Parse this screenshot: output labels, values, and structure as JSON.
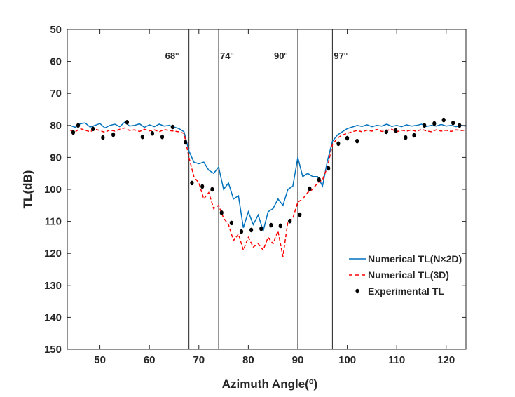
{
  "chart_data": {
    "type": "line",
    "title": "",
    "xlabel": "Azimuth Angle(°)",
    "ylabel": "TL(dB)",
    "xlim": [
      43.4,
      124
    ],
    "ylim": [
      50,
      150
    ],
    "y_reversed": true,
    "xticks": [
      50,
      60,
      70,
      80,
      90,
      100,
      110,
      120
    ],
    "yticks": [
      50,
      60,
      70,
      80,
      90,
      100,
      110,
      120,
      130,
      140,
      150
    ],
    "grid": false,
    "legend_placement": "lower-right",
    "vertical_markers": [
      {
        "x": 68,
        "label": "68°"
      },
      {
        "x": 74,
        "label": "74°"
      },
      {
        "x": 90,
        "label": "90°"
      },
      {
        "x": 97,
        "label": "97°"
      }
    ],
    "x": [
      44,
      45,
      46,
      47,
      48,
      49,
      50,
      51,
      52,
      53,
      54,
      55,
      56,
      57,
      58,
      59,
      60,
      61,
      62,
      63,
      64,
      65,
      66,
      67,
      68,
      69,
      70,
      71,
      72,
      73,
      74,
      75,
      76,
      77,
      78,
      79,
      80,
      81,
      82,
      83,
      84,
      85,
      86,
      87,
      88,
      89,
      90,
      91,
      92,
      93,
      94,
      95,
      96,
      97,
      98,
      99,
      100,
      101,
      102,
      103,
      104,
      105,
      106,
      107,
      108,
      109,
      110,
      111,
      112,
      113,
      114,
      115,
      116,
      117,
      118,
      119,
      120,
      121,
      122,
      123,
      124
    ],
    "series": [
      {
        "name": "Numerical TL(N×2D)",
        "color": "#0072BD",
        "style": "solid",
        "values": [
          80,
          80.6,
          79.5,
          79.2,
          80.5,
          80,
          79.4,
          80.8,
          80,
          79.6,
          80.4,
          79,
          80.2,
          80,
          79.5,
          80.6,
          79.8,
          80.4,
          79.6,
          80.2,
          80,
          80.5,
          81,
          82,
          88,
          91.5,
          92,
          91.5,
          94,
          95,
          93,
          100,
          98,
          103,
          102,
          112,
          107,
          111,
          108,
          113,
          107,
          106,
          103,
          105,
          100,
          99,
          90,
          96,
          95,
          96,
          96,
          99,
          91,
          85,
          83,
          82,
          81,
          80.5,
          80,
          80.3,
          79.8,
          80.4,
          80,
          80.2,
          79.6,
          80.3,
          80,
          80.4,
          79.8,
          80.2,
          80,
          79.6,
          80.3,
          80,
          80.2,
          79.7,
          80.2,
          80,
          80.4,
          80,
          80.2
        ]
      },
      {
        "name": "Numerical TL(3D)",
        "color": "#FF0000",
        "style": "dashed",
        "values": [
          81.5,
          82,
          81,
          81.5,
          82,
          81.2,
          81.6,
          82.2,
          81.4,
          81.8,
          81.2,
          80.8,
          81.6,
          81.4,
          81.9,
          81.2,
          81.7,
          81.4,
          82,
          81.3,
          81.6,
          81.8,
          82,
          82.5,
          90,
          96,
          98,
          103,
          101,
          106,
          105,
          109,
          111,
          116,
          114,
          119,
          115,
          118,
          117,
          119,
          115,
          117,
          113,
          121,
          110,
          109,
          104,
          103,
          101,
          100,
          98,
          97,
          93,
          86,
          84,
          83,
          82.5,
          82,
          81.6,
          82,
          81.5,
          81.8,
          81.3,
          81.9,
          81.6,
          81.2,
          82,
          81.5,
          81.8,
          81.4,
          81.9,
          81.2,
          81.7,
          82,
          81.4,
          81.8,
          81.5,
          81.9,
          81.4,
          81.6,
          81.5
        ]
      },
      {
        "name": "Experimental TL",
        "color": "#000000",
        "style": "marker",
        "points": [
          [
            44.6,
            82.2
          ],
          [
            45.6,
            80
          ],
          [
            48.6,
            81.1
          ],
          [
            50.6,
            83.8
          ],
          [
            52.7,
            82.9
          ],
          [
            55.5,
            79
          ],
          [
            58.6,
            83.6
          ],
          [
            60.6,
            82.5
          ],
          [
            62.6,
            83.6
          ],
          [
            64.7,
            80.5
          ],
          [
            67.3,
            85.3
          ],
          [
            68.6,
            98
          ],
          [
            70.7,
            99.1
          ],
          [
            72.7,
            100
          ],
          [
            74.6,
            107.3
          ],
          [
            76.6,
            110.5
          ],
          [
            78.6,
            113.2
          ],
          [
            80.6,
            112.7
          ],
          [
            82.6,
            112.3
          ],
          [
            84.6,
            111.2
          ],
          [
            86.5,
            111.4
          ],
          [
            88.4,
            109.9
          ],
          [
            90.4,
            107.9
          ],
          [
            92.4,
            99.8
          ],
          [
            94.3,
            97
          ],
          [
            96.2,
            93.4
          ],
          [
            98.2,
            85.7
          ],
          [
            100,
            84
          ],
          [
            102,
            84.9
          ],
          [
            107.9,
            82
          ],
          [
            109.8,
            81.6
          ],
          [
            111.8,
            83.8
          ],
          [
            113.5,
            83.1
          ],
          [
            115.6,
            80
          ],
          [
            117.6,
            79.4
          ],
          [
            119.5,
            78.3
          ],
          [
            121.4,
            79.2
          ],
          [
            122.7,
            80
          ]
        ]
      }
    ]
  }
}
